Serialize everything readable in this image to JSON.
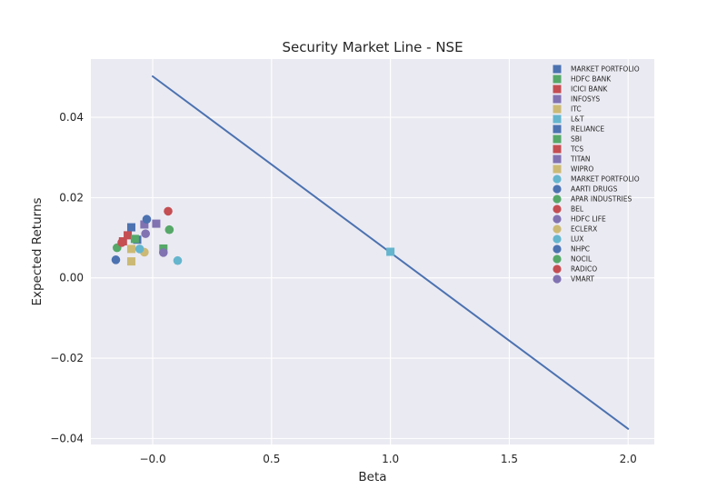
{
  "chart_data": {
    "type": "scatter",
    "title": "Security Market Line - NSE",
    "xlabel": "Beta",
    "ylabel": "Expected Returns",
    "xlim": [
      -0.26,
      2.11
    ],
    "ylim": [
      -0.0415,
      0.0545
    ],
    "xticks": [
      -0.0,
      0.5,
      1.0,
      1.5,
      2.0
    ],
    "xtick_labels": [
      "−0.0",
      "0.5",
      "1.0",
      "1.5",
      "2.0"
    ],
    "yticks": [
      0.04,
      0.02,
      0.0,
      -0.02,
      -0.04
    ],
    "ytick_labels": [
      "0.04",
      "0.02",
      "0.00",
      "−0.02",
      "−0.04"
    ],
    "grid": true,
    "legend_position": "top-right",
    "line": {
      "x": [
        0.0,
        2.0
      ],
      "y": [
        0.0502,
        -0.0376
      ],
      "color": "#4c72b0"
    },
    "series": [
      {
        "name": "MARKET PORTFOLIO",
        "marker": "square",
        "color": "#4c72b0",
        "x": -0.09,
        "y": 0.0126
      },
      {
        "name": "HDFC BANK",
        "marker": "square",
        "color": "#55a868",
        "x": 0.045,
        "y": 0.0073
      },
      {
        "name": "ICICI BANK",
        "marker": "square",
        "color": "#c44e52",
        "x": -0.105,
        "y": 0.0106
      },
      {
        "name": "INFOSYS",
        "marker": "square",
        "color": "#8172b2",
        "x": -0.035,
        "y": 0.0133
      },
      {
        "name": "ITC",
        "marker": "square",
        "color": "#ccb974",
        "x": -0.09,
        "y": 0.0041
      },
      {
        "name": "L&T",
        "marker": "square",
        "color": "#64b5cd",
        "x": 1.0,
        "y": 0.0065
      },
      {
        "name": "RELIANCE",
        "marker": "square",
        "color": "#4c72b0",
        "x": -0.065,
        "y": 0.0095
      },
      {
        "name": "SBI",
        "marker": "square",
        "color": "#55a868",
        "x": -0.075,
        "y": 0.0097
      },
      {
        "name": "TCS",
        "marker": "square",
        "color": "#c44e52",
        "x": -0.125,
        "y": 0.0091
      },
      {
        "name": "TITAN",
        "marker": "square",
        "color": "#8172b2",
        "x": 0.015,
        "y": 0.0135
      },
      {
        "name": "WIPRO",
        "marker": "square",
        "color": "#ccb974",
        "x": -0.09,
        "y": 0.0072
      },
      {
        "name": "MARKET PORTFOLIO",
        "marker": "circle",
        "color": "#64b5cd",
        "x": 0.105,
        "y": 0.0043
      },
      {
        "name": "AARTI DRUGS",
        "marker": "circle",
        "color": "#4c72b0",
        "x": -0.025,
        "y": 0.0146
      },
      {
        "name": "APAR INDUSTRIES",
        "marker": "circle",
        "color": "#55a868",
        "x": 0.07,
        "y": 0.012
      },
      {
        "name": "BEL",
        "marker": "circle",
        "color": "#c44e52",
        "x": 0.065,
        "y": 0.0166
      },
      {
        "name": "HDFC LIFE",
        "marker": "circle",
        "color": "#8172b2",
        "x": -0.03,
        "y": 0.011
      },
      {
        "name": "ECLERX",
        "marker": "circle",
        "color": "#ccb974",
        "x": -0.035,
        "y": 0.0064
      },
      {
        "name": "LUX",
        "marker": "circle",
        "color": "#64b5cd",
        "x": -0.055,
        "y": 0.0072
      },
      {
        "name": "NHPC",
        "marker": "circle",
        "color": "#4c72b0",
        "x": -0.155,
        "y": 0.0045
      },
      {
        "name": "NOCIL",
        "marker": "circle",
        "color": "#55a868",
        "x": -0.15,
        "y": 0.0075
      },
      {
        "name": "RADICO",
        "marker": "circle",
        "color": "#c44e52",
        "x": -0.13,
        "y": 0.0088
      },
      {
        "name": "VMART",
        "marker": "circle",
        "color": "#8172b2",
        "x": 0.045,
        "y": 0.0063
      }
    ]
  }
}
